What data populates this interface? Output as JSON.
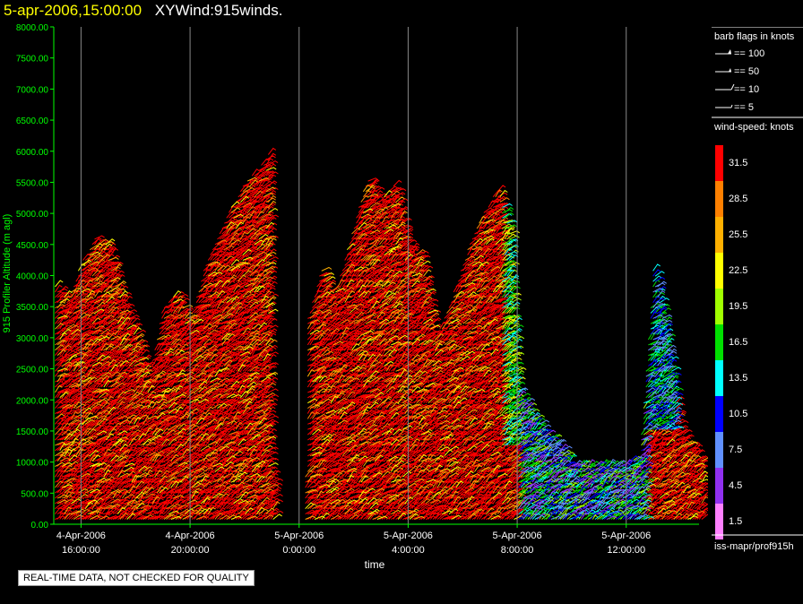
{
  "header": {
    "date_time": "5-apr-2006,15:00:00",
    "product": "XYWind:915winds."
  },
  "chart_data": {
    "type": "scatter",
    "ylabel": "915 Profiler Altitude (m agl)",
    "xlabel": "time",
    "y_ticks": [
      "0.00",
      "500.00",
      "1000.00",
      "1500.00",
      "2000.00",
      "2500.00",
      "3000.00",
      "3500.00",
      "4000.00",
      "4500.00",
      "5000.00",
      "5500.00",
      "6000.00",
      "6500.00",
      "7000.00",
      "7500.00",
      "8000.00"
    ],
    "ylim": [
      0,
      8000
    ],
    "x_ticks": [
      {
        "date": "4-Apr-2006",
        "time": "16:00:00",
        "hour": 16
      },
      {
        "date": "4-Apr-2006",
        "time": "20:00:00",
        "hour": 20
      },
      {
        "date": "5-Apr-2006",
        "time": "0:00:00",
        "hour": 24
      },
      {
        "date": "5-Apr-2006",
        "time": "4:00:00",
        "hour": 28
      },
      {
        "date": "5-Apr-2006",
        "time": "8:00:00",
        "hour": 32
      },
      {
        "date": "5-Apr-2006",
        "time": "12:00:00",
        "hour": 36
      }
    ],
    "xlim_hours": [
      15,
      39
    ],
    "vertical_gridlines": true,
    "max_altitude_profile": [
      {
        "hour": 15.0,
        "top": 3900
      },
      {
        "hour": 15.5,
        "top": 3600
      },
      {
        "hour": 16.0,
        "top": 4200
      },
      {
        "hour": 16.5,
        "top": 4600
      },
      {
        "hour": 17.0,
        "top": 4500
      },
      {
        "hour": 17.5,
        "top": 3700
      },
      {
        "hour": 18.0,
        "top": 3100
      },
      {
        "hour": 18.5,
        "top": 2400
      },
      {
        "hour": 19.0,
        "top": 3500
      },
      {
        "hour": 19.5,
        "top": 3700
      },
      {
        "hour": 20.0,
        "top": 3300
      },
      {
        "hour": 20.5,
        "top": 4100
      },
      {
        "hour": 21.0,
        "top": 4600
      },
      {
        "hour": 21.5,
        "top": 5100
      },
      {
        "hour": 22.0,
        "top": 5500
      },
      {
        "hour": 22.5,
        "top": 5700
      },
      {
        "hour": 22.9,
        "top": 6000
      },
      {
        "hour": 23.1,
        "top": 800
      },
      {
        "hour": 24.3,
        "top": 3300
      },
      {
        "hour": 24.8,
        "top": 4100
      },
      {
        "hour": 25.3,
        "top": 3700
      },
      {
        "hour": 26.0,
        "top": 4800
      },
      {
        "hour": 26.5,
        "top": 5600
      },
      {
        "hour": 27.0,
        "top": 5200
      },
      {
        "hour": 27.5,
        "top": 5500
      },
      {
        "hour": 28.0,
        "top": 4500
      },
      {
        "hour": 28.5,
        "top": 4300
      },
      {
        "hour": 29.0,
        "top": 3000
      },
      {
        "hour": 29.5,
        "top": 3500
      },
      {
        "hour": 30.0,
        "top": 4200
      },
      {
        "hour": 30.5,
        "top": 4800
      },
      {
        "hour": 31.0,
        "top": 5200
      },
      {
        "hour": 31.3,
        "top": 5400
      },
      {
        "hour": 31.7,
        "top": 4800
      },
      {
        "hour": 32.0,
        "top": 2200
      },
      {
        "hour": 32.5,
        "top": 1800
      },
      {
        "hour": 33.0,
        "top": 1500
      },
      {
        "hour": 33.5,
        "top": 1300
      },
      {
        "hour": 34.0,
        "top": 1000
      },
      {
        "hour": 34.5,
        "top": 1000
      },
      {
        "hour": 35.0,
        "top": 1000
      },
      {
        "hour": 35.5,
        "top": 1000
      },
      {
        "hour": 36.0,
        "top": 1000
      },
      {
        "hour": 36.5,
        "top": 1100
      },
      {
        "hour": 37.0,
        "top": 4200
      },
      {
        "hour": 37.5,
        "top": 3000
      },
      {
        "hour": 38.0,
        "top": 1500
      },
      {
        "hour": 38.5,
        "top": 1200
      },
      {
        "hour": 38.8,
        "top": 1000
      }
    ]
  },
  "legend": {
    "barb_title": "barb flags in knots",
    "barb_items": [
      "== 100",
      "== 50",
      "== 10",
      "== 5"
    ],
    "speed_title": "wind-speed: knots",
    "speed_scale": [
      {
        "label": "31.5",
        "color": "#ff0000"
      },
      {
        "label": "28.5",
        "color": "#ff8000"
      },
      {
        "label": "25.5",
        "color": "#ffb000"
      },
      {
        "label": "22.5",
        "color": "#ffff00"
      },
      {
        "label": "19.5",
        "color": "#a0ff00"
      },
      {
        "label": "16.5",
        "color": "#00e000"
      },
      {
        "label": "13.5",
        "color": "#00ffff"
      },
      {
        "label": "10.5",
        "color": "#0000ff"
      },
      {
        "label": "7.5",
        "color": "#6090ff"
      },
      {
        "label": "4.5",
        "color": "#9030f0"
      },
      {
        "label": "1.5",
        "color": "#ff80ff"
      }
    ],
    "source": "iss-mapr/prof915h"
  },
  "footer": {
    "qc_note": "REAL-TIME DATA, NOT CHECKED FOR QUALITY"
  },
  "colors": {
    "axis": "#00ff00",
    "gridline": "#888888",
    "background": "#000000"
  }
}
